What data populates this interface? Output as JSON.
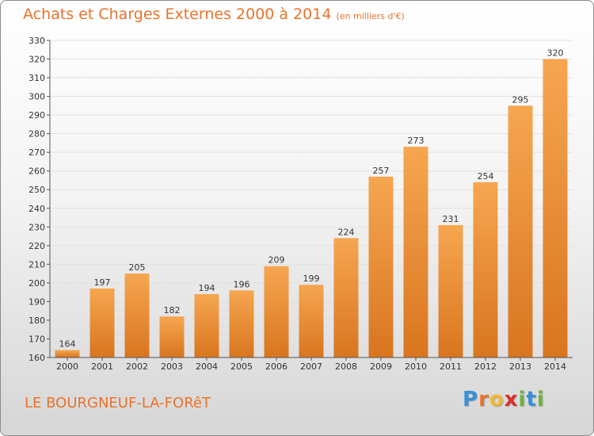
{
  "title": "Achats et Charges Externes 2000 à 2014",
  "unit": "(en milliers d'€)",
  "commune": "LE BOURGNEUF-LA-FORêT",
  "logo": {
    "letters": [
      "P",
      "r",
      "o",
      "x",
      "i",
      "t",
      "i"
    ],
    "colors": [
      "#3a8fd8",
      "#e8732c",
      "#f2b632",
      "#d9302c",
      "#6cb33e",
      "#3a8fd8",
      "#6cb33e"
    ]
  },
  "colors": {
    "bar_light": "#f6a650",
    "bar_dark": "#d9751f",
    "title": "#e8732c"
  },
  "chart_data": {
    "type": "bar",
    "categories": [
      "2000",
      "2001",
      "2002",
      "2003",
      "2004",
      "2005",
      "2006",
      "2007",
      "2008",
      "2009",
      "2010",
      "2011",
      "2012",
      "2013",
      "2014"
    ],
    "values": [
      164,
      197,
      205,
      182,
      194,
      196,
      209,
      199,
      224,
      257,
      273,
      231,
      254,
      295,
      320
    ],
    "ylim": [
      160,
      330
    ],
    "yticks": [
      160,
      170,
      180,
      190,
      200,
      210,
      220,
      230,
      240,
      250,
      260,
      270,
      280,
      290,
      300,
      310,
      320,
      330
    ],
    "grid": true
  }
}
